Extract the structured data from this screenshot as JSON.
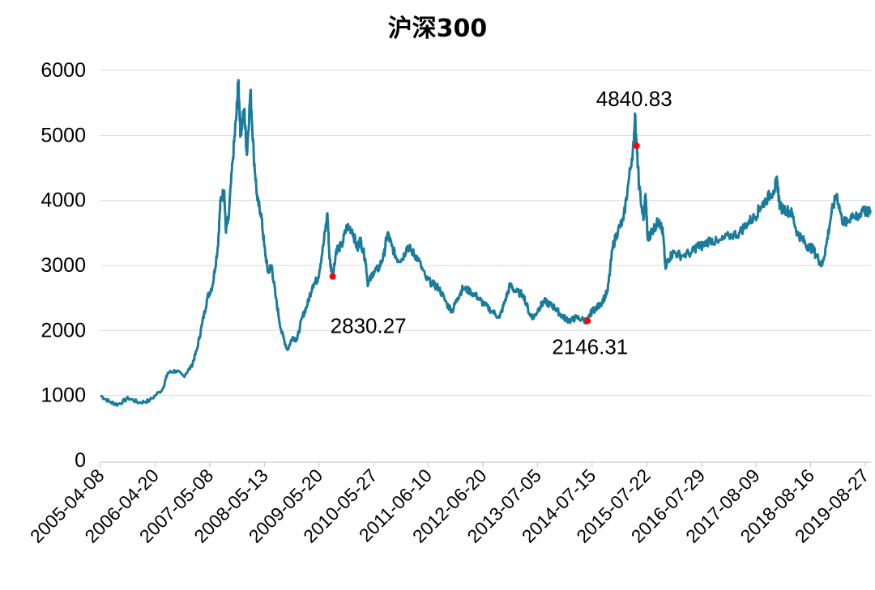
{
  "chart_data": {
    "type": "line",
    "title": "沪深300",
    "xlabel": "",
    "ylabel": "",
    "ylim": [
      0,
      6000
    ],
    "yticks": [
      0,
      1000,
      2000,
      3000,
      4000,
      5000,
      6000
    ],
    "grid": true,
    "line_color": "#1a7b9c",
    "marker_color": "#ff0000",
    "x_tick_labels": [
      "2005-04-08",
      "2006-04-20",
      "2007-05-08",
      "2008-05-13",
      "2009-05-20",
      "2010-05-27",
      "2011-06-10",
      "2012-06-20",
      "2013-07-05",
      "2014-07-15",
      "2015-07-22",
      "2016-07-29",
      "2017-08-09",
      "2018-08-16",
      "2019-08-27"
    ],
    "x_range_years": [
      2005.27,
      2019.9
    ],
    "series": [
      {
        "name": "沪深300",
        "points": [
          [
            2005.27,
            1000
          ],
          [
            2005.45,
            900
          ],
          [
            2005.6,
            860
          ],
          [
            2005.8,
            960
          ],
          [
            2006.0,
            890
          ],
          [
            2006.2,
            920
          ],
          [
            2006.45,
            1100
          ],
          [
            2006.55,
            1350
          ],
          [
            2006.7,
            1380
          ],
          [
            2006.85,
            1300
          ],
          [
            2007.0,
            1450
          ],
          [
            2007.1,
            1700
          ],
          [
            2007.2,
            2100
          ],
          [
            2007.3,
            2500
          ],
          [
            2007.4,
            2700
          ],
          [
            2007.5,
            3300
          ],
          [
            2007.55,
            4000
          ],
          [
            2007.62,
            4150
          ],
          [
            2007.65,
            3550
          ],
          [
            2007.7,
            3700
          ],
          [
            2007.78,
            4600
          ],
          [
            2007.85,
            5300
          ],
          [
            2007.89,
            5850
          ],
          [
            2007.93,
            5000
          ],
          [
            2008.0,
            5400
          ],
          [
            2008.05,
            4700
          ],
          [
            2008.12,
            5700
          ],
          [
            2008.18,
            4700
          ],
          [
            2008.25,
            4000
          ],
          [
            2008.32,
            3800
          ],
          [
            2008.38,
            3300
          ],
          [
            2008.45,
            2900
          ],
          [
            2008.52,
            3000
          ],
          [
            2008.6,
            2500
          ],
          [
            2008.7,
            2000
          ],
          [
            2008.82,
            1700
          ],
          [
            2008.92,
            1900
          ],
          [
            2009.0,
            1850
          ],
          [
            2009.1,
            2200
          ],
          [
            2009.2,
            2400
          ],
          [
            2009.3,
            2700
          ],
          [
            2009.4,
            2800
          ],
          [
            2009.5,
            3300
          ],
          [
            2009.58,
            3800
          ],
          [
            2009.62,
            3100
          ],
          [
            2009.68,
            2830
          ],
          [
            2009.75,
            3250
          ],
          [
            2009.85,
            3300
          ],
          [
            2009.95,
            3600
          ],
          [
            2010.05,
            3550
          ],
          [
            2010.15,
            3250
          ],
          [
            2010.2,
            3400
          ],
          [
            2010.3,
            3100
          ],
          [
            2010.35,
            2700
          ],
          [
            2010.45,
            2900
          ],
          [
            2010.55,
            2950
          ],
          [
            2010.65,
            3150
          ],
          [
            2010.72,
            3500
          ],
          [
            2010.8,
            3300
          ],
          [
            2010.9,
            3100
          ],
          [
            2011.0,
            3100
          ],
          [
            2011.1,
            3300
          ],
          [
            2011.2,
            3200
          ],
          [
            2011.3,
            3100
          ],
          [
            2011.45,
            2800
          ],
          [
            2011.6,
            2700
          ],
          [
            2011.7,
            2650
          ],
          [
            2011.85,
            2400
          ],
          [
            2011.95,
            2300
          ],
          [
            2012.05,
            2500
          ],
          [
            2012.15,
            2650
          ],
          [
            2012.3,
            2600
          ],
          [
            2012.45,
            2500
          ],
          [
            2012.55,
            2400
          ],
          [
            2012.7,
            2300
          ],
          [
            2012.85,
            2200
          ],
          [
            2012.95,
            2450
          ],
          [
            2013.05,
            2700
          ],
          [
            2013.15,
            2600
          ],
          [
            2013.3,
            2550
          ],
          [
            2013.42,
            2250
          ],
          [
            2013.5,
            2200
          ],
          [
            2013.6,
            2350
          ],
          [
            2013.7,
            2450
          ],
          [
            2013.8,
            2400
          ],
          [
            2013.9,
            2350
          ],
          [
            2014.0,
            2250
          ],
          [
            2014.1,
            2180
          ],
          [
            2014.2,
            2150
          ],
          [
            2014.3,
            2200
          ],
          [
            2014.45,
            2160
          ],
          [
            2014.52,
            2146
          ],
          [
            2014.6,
            2300
          ],
          [
            2014.7,
            2350
          ],
          [
            2014.8,
            2450
          ],
          [
            2014.9,
            2600
          ],
          [
            2015.0,
            3300
          ],
          [
            2015.1,
            3550
          ],
          [
            2015.2,
            3700
          ],
          [
            2015.3,
            4300
          ],
          [
            2015.4,
            4900
          ],
          [
            2015.42,
            5300
          ],
          [
            2015.45,
            4840
          ],
          [
            2015.5,
            4200
          ],
          [
            2015.58,
            3700
          ],
          [
            2015.62,
            4100
          ],
          [
            2015.66,
            3400
          ],
          [
            2015.72,
            3500
          ],
          [
            2015.8,
            3600
          ],
          [
            2015.88,
            3700
          ],
          [
            2015.95,
            3500
          ],
          [
            2016.0,
            2950
          ],
          [
            2016.05,
            3100
          ],
          [
            2016.15,
            3200
          ],
          [
            2016.3,
            3150
          ],
          [
            2016.5,
            3200
          ],
          [
            2016.6,
            3300
          ],
          [
            2016.7,
            3300
          ],
          [
            2016.85,
            3400
          ],
          [
            2017.0,
            3350
          ],
          [
            2017.2,
            3450
          ],
          [
            2017.4,
            3500
          ],
          [
            2017.55,
            3650
          ],
          [
            2017.7,
            3750
          ],
          [
            2017.8,
            3900
          ],
          [
            2017.9,
            4000
          ],
          [
            2018.05,
            4150
          ],
          [
            2018.12,
            4300
          ],
          [
            2018.17,
            3900
          ],
          [
            2018.3,
            3850
          ],
          [
            2018.4,
            3800
          ],
          [
            2018.5,
            3500
          ],
          [
            2018.6,
            3400
          ],
          [
            2018.7,
            3300
          ],
          [
            2018.8,
            3250
          ],
          [
            2018.9,
            3100
          ],
          [
            2018.97,
            3000
          ],
          [
            2019.05,
            3300
          ],
          [
            2019.15,
            3800
          ],
          [
            2019.25,
            4100
          ],
          [
            2019.35,
            3700
          ],
          [
            2019.45,
            3650
          ],
          [
            2019.55,
            3800
          ],
          [
            2019.65,
            3700
          ],
          [
            2019.75,
            3900
          ],
          [
            2019.82,
            3800
          ],
          [
            2019.9,
            3850
          ]
        ]
      }
    ],
    "annotations": [
      {
        "label": "2830.27",
        "x": 2009.68,
        "y": 2830.27
      },
      {
        "label": "2146.31",
        "x": 2014.52,
        "y": 2146.31
      },
      {
        "label": "4840.83",
        "x": 2015.45,
        "y": 4840.83
      }
    ]
  }
}
